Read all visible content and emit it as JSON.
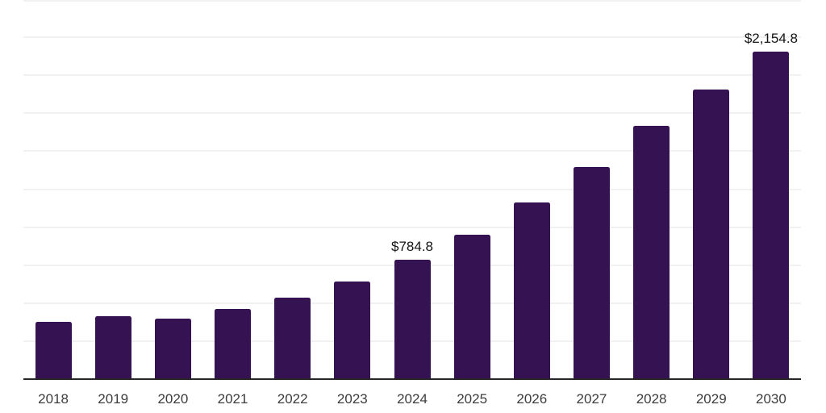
{
  "chart_data": {
    "type": "bar",
    "title": "",
    "xlabel": "",
    "ylabel": "",
    "categories": [
      "2018",
      "2019",
      "2020",
      "2021",
      "2022",
      "2023",
      "2024",
      "2025",
      "2026",
      "2027",
      "2028",
      "2029",
      "2030"
    ],
    "values": [
      378,
      414,
      396,
      463,
      536,
      640,
      784.8,
      952,
      1160,
      1398,
      1668,
      1903,
      2154.8
    ],
    "ylim": [
      0,
      2500
    ],
    "grid_interval": 250,
    "grid": "horizontal-only",
    "legend_position": "none",
    "data_labels": [
      {
        "category": "2024",
        "text": "$784.8"
      },
      {
        "category": "2030",
        "text": "$2,154.8"
      }
    ],
    "colors": {
      "bar": "#351352",
      "grid_line": "#f1f1f1",
      "axis_line": "#262626",
      "tick_label": "#3c3c3c",
      "data_label": "#141414",
      "background": "#ffffff"
    }
  }
}
